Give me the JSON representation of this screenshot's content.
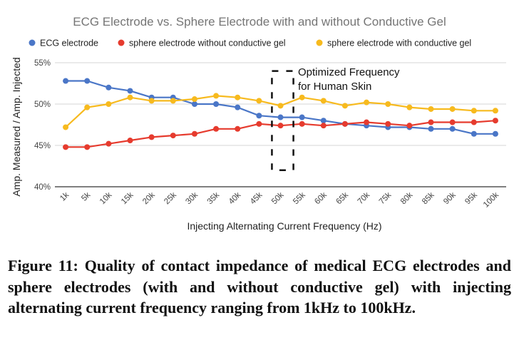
{
  "chart_data": {
    "type": "line",
    "title": "ECG Electrode vs. Sphere Electrode with and without Conductive Gel",
    "xlabel": "Injecting Alternating Current Frequency (Hz)",
    "ylabel": "Amp. Measured / Amp. Injected",
    "categories": [
      "1k",
      "5k",
      "10k",
      "15k",
      "20k",
      "25k",
      "30k",
      "35k",
      "40k",
      "45k",
      "50k",
      "55k",
      "60k",
      "65k",
      "70k",
      "75k",
      "80k",
      "85k",
      "90k",
      "95k",
      "100k"
    ],
    "ylim": [
      40,
      55
    ],
    "yticks": [
      40,
      45,
      50,
      55
    ],
    "ytick_labels": [
      "40%",
      "45%",
      "50%",
      "55%"
    ],
    "grid": true,
    "legend_position": "top",
    "series": [
      {
        "name": "ECG electrode",
        "color": "#4A76C7",
        "values": [
          52.8,
          52.8,
          52.0,
          51.6,
          50.8,
          50.8,
          50.0,
          50.0,
          49.6,
          48.6,
          48.4,
          48.4,
          48.0,
          47.6,
          47.4,
          47.2,
          47.2,
          47.0,
          47.0,
          46.4,
          46.4
        ]
      },
      {
        "name": "sphere electrode without conductive gel",
        "color": "#E63B2E",
        "values": [
          44.8,
          44.8,
          45.2,
          45.6,
          46.0,
          46.2,
          46.4,
          47.0,
          47.0,
          47.6,
          47.4,
          47.6,
          47.4,
          47.6,
          47.8,
          47.6,
          47.4,
          47.8,
          47.8,
          47.8,
          48.0
        ]
      },
      {
        "name": "sphere electrode with conductive gel",
        "color": "#F7BA1E",
        "values": [
          47.2,
          49.6,
          50.0,
          50.8,
          50.4,
          50.4,
          50.6,
          51.0,
          50.8,
          50.4,
          49.8,
          50.8,
          50.4,
          49.8,
          50.2,
          50.0,
          49.6,
          49.4,
          49.4,
          49.2,
          49.2
        ]
      }
    ],
    "annotation": {
      "lines": [
        "Optimized Frequency",
        "for Human Skin"
      ],
      "x_range": [
        "45k",
        "55k"
      ],
      "y_range": [
        42.0,
        54.0
      ]
    }
  },
  "caption": "Figure 11: Quality of contact impedance of medical ECG electrodes and sphere electrodes (with and without conductive gel) with injecting alternating current frequency ranging from 1kHz to 100kHz."
}
